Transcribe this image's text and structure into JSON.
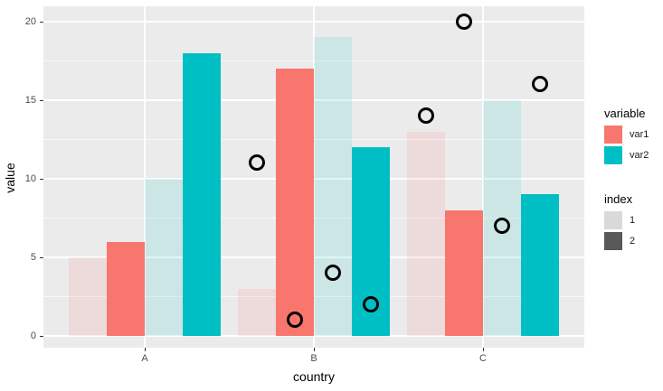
{
  "chart_data": {
    "type": "bar",
    "title": "",
    "xlabel": "country",
    "ylabel": "value",
    "categories": [
      "A",
      "B",
      "C"
    ],
    "series": [
      {
        "name": "var1-index1",
        "variable": "var1",
        "index": "1",
        "color": "rgba(248,118,109,0.13)",
        "values": [
          5,
          3,
          13
        ]
      },
      {
        "name": "var1-index2",
        "variable": "var1",
        "index": "2",
        "color": "#F8766D",
        "values": [
          6,
          17,
          8
        ]
      },
      {
        "name": "var2-index1",
        "variable": "var2",
        "index": "1",
        "color": "rgba(0,191,196,0.13)",
        "values": [
          10,
          19,
          15
        ]
      },
      {
        "name": "var2-index2",
        "variable": "var2",
        "index": "2",
        "color": "#00BFC4",
        "values": [
          18,
          12,
          9
        ]
      }
    ],
    "points": [
      {
        "category": "B",
        "slot": 0,
        "value": 11
      },
      {
        "category": "B",
        "slot": 1,
        "value": 1
      },
      {
        "category": "B",
        "slot": 2,
        "value": 4
      },
      {
        "category": "B",
        "slot": 3,
        "value": 2
      },
      {
        "category": "C",
        "slot": 0,
        "value": 14
      },
      {
        "category": "C",
        "slot": 1,
        "value": 20
      },
      {
        "category": "C",
        "slot": 2,
        "value": 7
      },
      {
        "category": "C",
        "slot": 3,
        "value": 16
      }
    ],
    "yticks": [
      0,
      5,
      10,
      15,
      20
    ],
    "yticks_minor": [
      2.5,
      7.5,
      12.5,
      17.5
    ],
    "ylim": [
      -1,
      21.5
    ],
    "grid": true,
    "legend_position": "right",
    "point_style": "open-black-circle"
  },
  "legend": {
    "groups": [
      {
        "title": "variable",
        "items": [
          {
            "label": "var1",
            "color": "#F8766D"
          },
          {
            "label": "var2",
            "color": "#00BFC4"
          }
        ]
      },
      {
        "title": "index",
        "items": [
          {
            "label": "1",
            "color": "#D9D9D9"
          },
          {
            "label": "2",
            "color": "#595959"
          }
        ]
      }
    ]
  },
  "colors": {
    "panel_background": "#EBEBEB",
    "figure_background": "#FFFFFF",
    "gridline": "#FFFFFF",
    "tick_label": "#4D4D4D",
    "axis_title": "#000000",
    "point_stroke": "#000000"
  }
}
